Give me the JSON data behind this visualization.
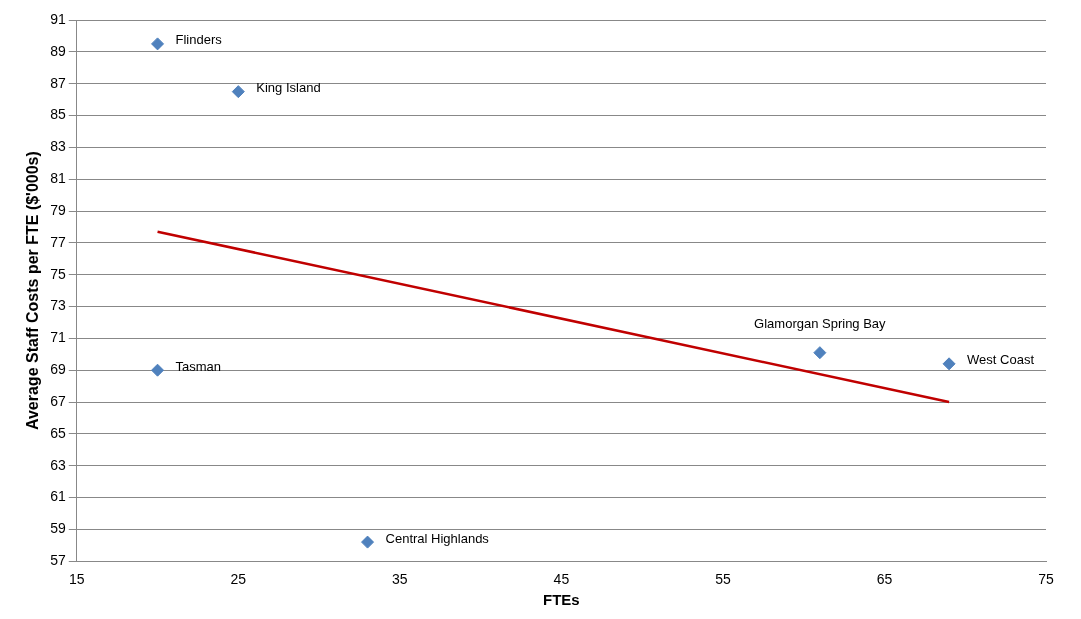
{
  "chart_data": {
    "type": "scatter",
    "xlabel": "FTEs",
    "ylabel": "Average Staff Costs per FTE ($'000s)",
    "xlim": [
      15,
      75
    ],
    "xticks": [
      15,
      25,
      35,
      45,
      55,
      65,
      75
    ],
    "ylim": [
      57,
      91
    ],
    "yticks": [
      57,
      59,
      61,
      63,
      65,
      67,
      69,
      71,
      73,
      75,
      77,
      79,
      81,
      83,
      85,
      87,
      89,
      91
    ],
    "grid": "y",
    "legend": false,
    "marker": "diamond",
    "series": [
      {
        "type": "scatter",
        "color": "#4f81bd",
        "x": [
          20,
          25,
          20,
          33,
          61,
          69
        ],
        "values": [
          89.5,
          86.5,
          69.0,
          58.2,
          70.1,
          69.4
        ]
      },
      {
        "type": "line",
        "marker": "none",
        "color": "#c00000",
        "x": [
          20,
          69
        ],
        "values": [
          77.7,
          67.0
        ]
      }
    ],
    "annotations": [
      {
        "text": "Flinders",
        "x": 20,
        "y": 89.5
      },
      {
        "text": "King Island",
        "x": 25,
        "y": 86.5
      },
      {
        "text": "Tasman",
        "x": 20,
        "y": 69.0
      },
      {
        "text": "Central Highlands",
        "x": 33,
        "y": 58.2
      },
      {
        "text": "Glamorgan Spring Bay",
        "x": 61,
        "y": 70.1
      },
      {
        "text": "West Coast",
        "x": 69,
        "y": 69.4
      }
    ]
  }
}
